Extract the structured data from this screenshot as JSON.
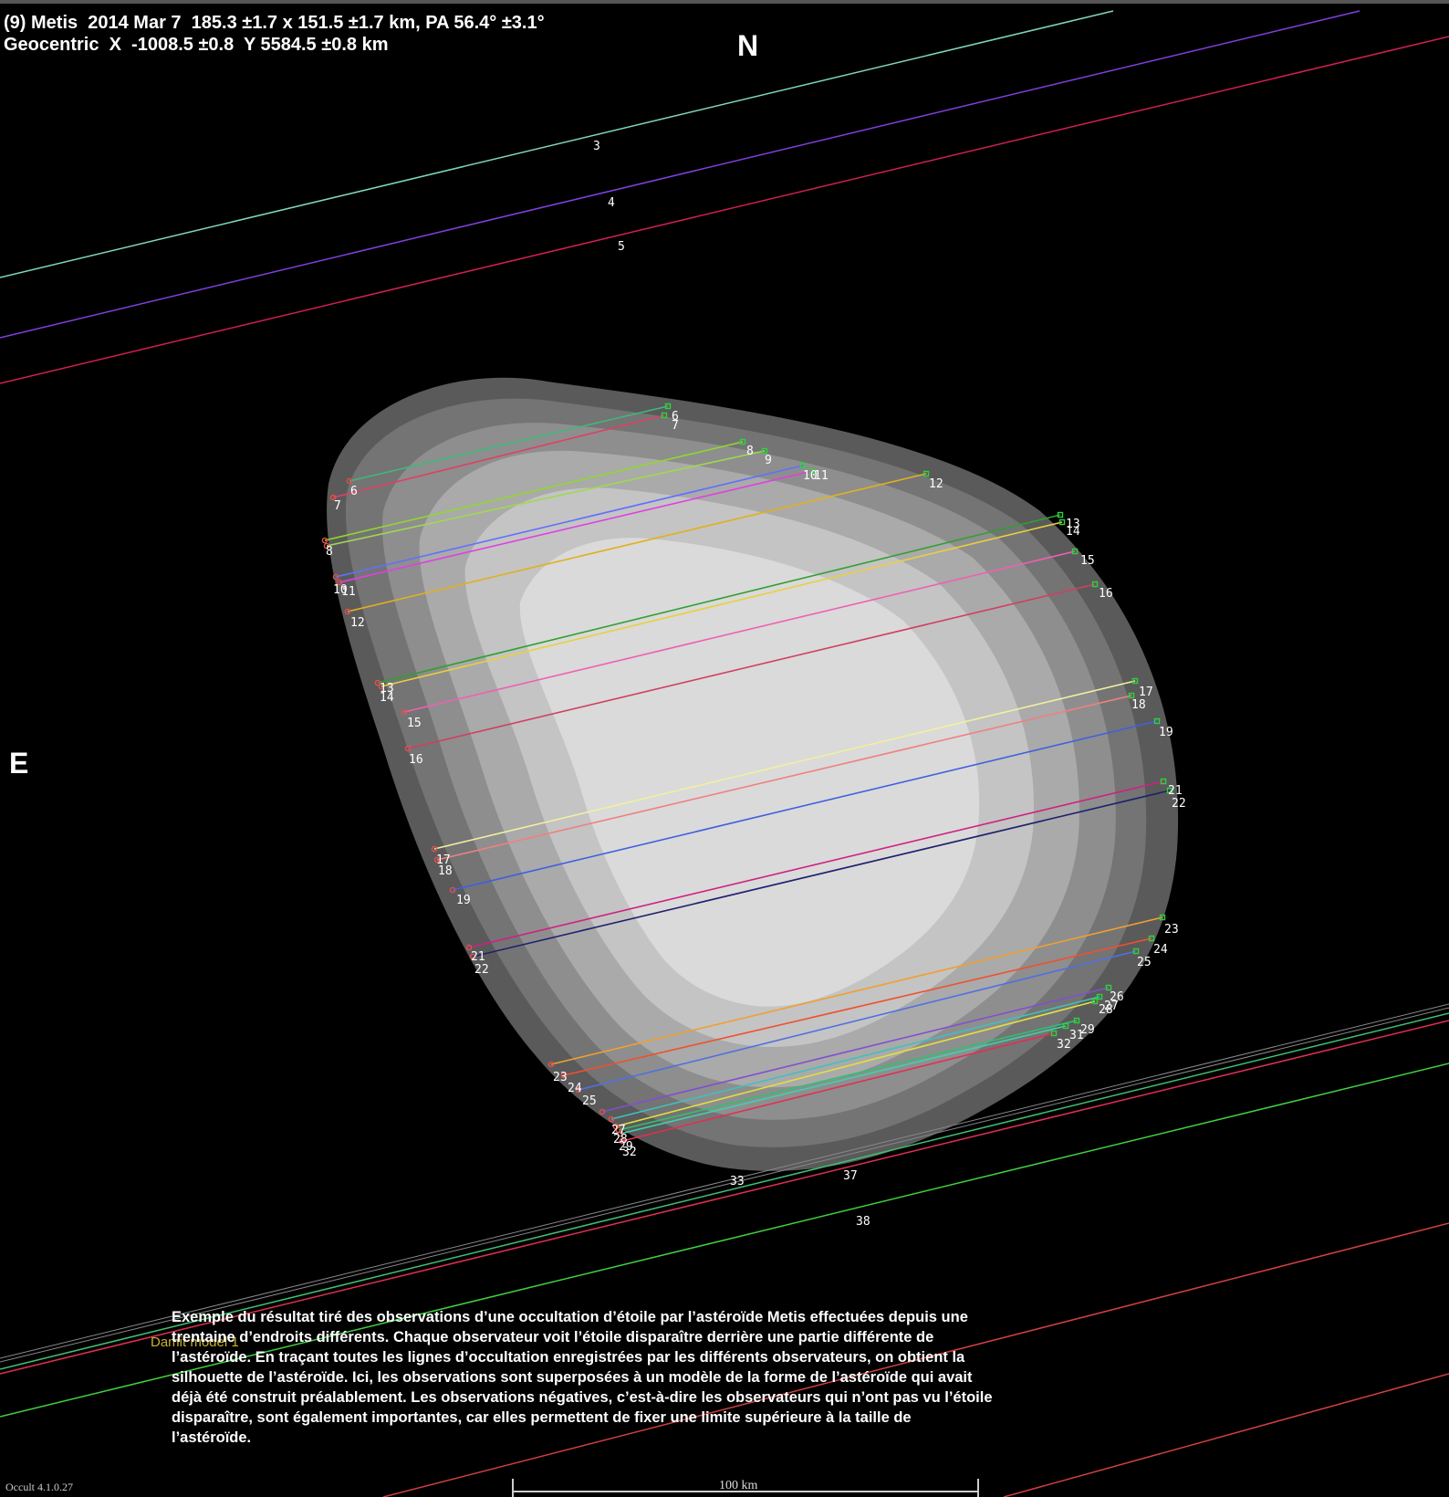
{
  "header": {
    "line1": "(9) Metis  2014 Mar 7  185.3 ±1.7 x 151.5 ±1.7 km, PA 56.4° ±3.1°",
    "line2": "Geocentric  X  -1008.5 ±0.8  Y 5584.5 ±0.8 km"
  },
  "directions": {
    "north": "N",
    "east": "E"
  },
  "model_label": "Damit model 1",
  "scale_bar": {
    "label": "100 km"
  },
  "version": "Occult 4.1.0.27",
  "caption": "Exemple du résultat tiré des observations d’une occultation d’étoile par l’astéroïde Metis effectuées depuis une trentaine d’endroits différents. Chaque observateur voit l’étoile disparaître derrière une partie différente de l’astéroïde. En traçant toutes les lignes d’occultation enregistrées par les différents observateurs, on obtient la silhouette de l’astéroïde. Ici, les observations sont superposées à un modèle de la forme de l’astéroïde qui avait déjà été construit préalablement. Les observations négatives, c’est-à-dire les observateurs qui n’ont pas vu l’étoile disparaître, sont également importantes, car elles permettent de fixer une limite supérieure à la taille de l’astéroïde.",
  "colors": {
    "background": "#000000",
    "disappear_marker": "#e05050",
    "reappear_marker": "#30d040"
  },
  "chords": [
    {
      "id": "6",
      "color": "#3fb87a"
    },
    {
      "id": "7",
      "color": "#e04060"
    },
    {
      "id": "8",
      "color": "#8fd82f"
    },
    {
      "id": "9",
      "color": "#9fd84f"
    },
    {
      "id": "10",
      "color": "#6070ff"
    },
    {
      "id": "11",
      "color": "#e040e0"
    },
    {
      "id": "12",
      "color": "#e0b020"
    },
    {
      "id": "13",
      "color": "#30a030"
    },
    {
      "id": "14",
      "color": "#e8d040"
    },
    {
      "id": "15",
      "color": "#f060b0"
    },
    {
      "id": "16",
      "color": "#d04060"
    },
    {
      "id": "17",
      "color": "#f0f0a0"
    },
    {
      "id": "18",
      "color": "#f08080"
    },
    {
      "id": "19",
      "color": "#4060e0"
    },
    {
      "id": "21",
      "color": "#d02080"
    },
    {
      "id": "22",
      "color": "#202070"
    },
    {
      "id": "23",
      "color": "#f0a030"
    },
    {
      "id": "24",
      "color": "#f05030"
    },
    {
      "id": "25",
      "color": "#5070e0"
    },
    {
      "id": "26",
      "color": "#8050d0"
    },
    {
      "id": "27",
      "color": "#40c0c0"
    },
    {
      "id": "28",
      "color": "#e0e040"
    },
    {
      "id": "29",
      "color": "#30c070"
    },
    {
      "id": "31",
      "color": "#40d0b0"
    },
    {
      "id": "32",
      "color": "#e03050"
    }
  ],
  "miss_lines": [
    {
      "id": "3",
      "color": "#7fd8b8"
    },
    {
      "id": "4",
      "color": "#8040e0"
    },
    {
      "id": "5",
      "color": "#d02050"
    },
    {
      "id": "33",
      "color": "#40c070"
    },
    {
      "id": "37",
      "color": "#e03050"
    },
    {
      "id": "38",
      "color": "#40d040"
    }
  ]
}
